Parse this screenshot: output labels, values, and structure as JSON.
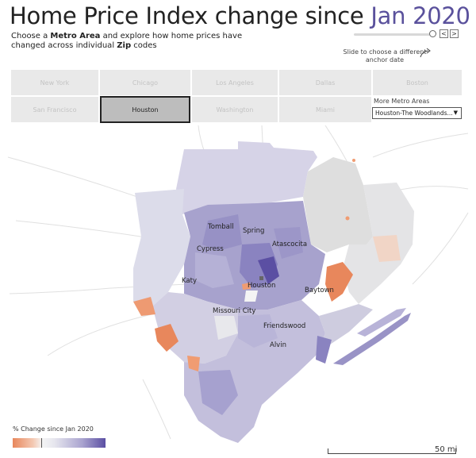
{
  "header": {
    "title_main": "Home Price Index change since ",
    "title_accent": "Jan 2020",
    "subtitle_1": "Choose a ",
    "subtitle_bold_1": "Metro Area",
    "subtitle_2": " and explore how home prices have changed across individual ",
    "subtitle_bold_2": "Zip",
    "subtitle_3": " codes"
  },
  "slider": {
    "prev_glyph": "<",
    "next_glyph": ">",
    "hint": "Slide to choose a different anchor date"
  },
  "metros": {
    "row1": [
      "New York",
      "Chicago",
      "Los Angeles",
      "Dallas",
      "Boston"
    ],
    "row2": [
      "San Francisco",
      "Houston",
      "Washington",
      "Miami"
    ],
    "selected": "Houston"
  },
  "more_metros": {
    "label": "More Metro Areas",
    "selected_value": "Houston-The Woodlands...",
    "caret": "▼"
  },
  "map": {
    "cities": [
      "Tomball",
      "Spring",
      "Cypress",
      "Atascocita",
      "Katy",
      "Houston",
      "Baytown",
      "Missouri City",
      "Friendswood",
      "Alvin"
    ]
  },
  "legend": {
    "title": "% Change since Jan 2020",
    "colors": [
      "#e8875c",
      "#f4f4f4",
      "#5b4fa3"
    ]
  },
  "scale": {
    "label": "50 mi"
  }
}
